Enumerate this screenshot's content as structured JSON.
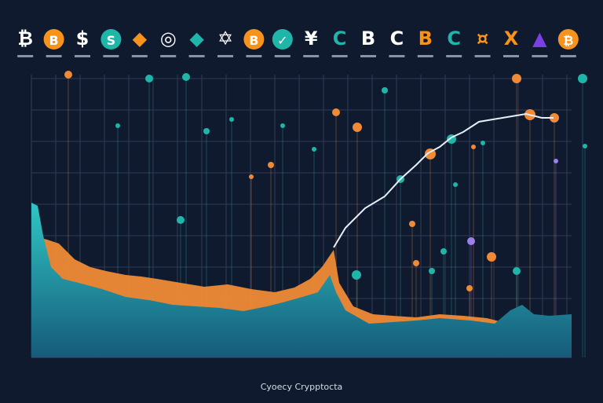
{
  "header": {
    "icons": [
      {
        "glyph": "₿",
        "color": "#ffffff",
        "ring": false
      },
      {
        "glyph": "B",
        "color": "#f7931a",
        "ring": true
      },
      {
        "glyph": "$",
        "color": "#ffffff",
        "ring": false
      },
      {
        "glyph": "S",
        "color": "#1fb5a8",
        "ring": true
      },
      {
        "glyph": "◆",
        "color": "#f7931a",
        "ring": false
      },
      {
        "glyph": "◎",
        "color": "#ffffff",
        "ring": false
      },
      {
        "glyph": "◆",
        "color": "#1fb5a8",
        "ring": false
      },
      {
        "glyph": "✡",
        "color": "#ffffff",
        "ring": false
      },
      {
        "glyph": "B",
        "color": "#f7931a",
        "ring": true
      },
      {
        "glyph": "✓",
        "color": "#1fb5a8",
        "ring": true
      },
      {
        "glyph": "¥",
        "color": "#ffffff",
        "ring": false
      },
      {
        "glyph": "C",
        "color": "#1fb5a8",
        "ring": false
      },
      {
        "glyph": "B",
        "color": "#ffffff",
        "ring": false
      },
      {
        "glyph": "C",
        "color": "#ffffff",
        "ring": false
      },
      {
        "glyph": "B",
        "color": "#f7931a",
        "ring": false
      },
      {
        "glyph": "C",
        "color": "#1fb5a8",
        "ring": false
      },
      {
        "glyph": "¤",
        "color": "#f7931a",
        "ring": false
      },
      {
        "glyph": "X",
        "color": "#f7931a",
        "ring": false
      },
      {
        "glyph": "▲",
        "color": "#7b3fe4",
        "ring": false
      },
      {
        "glyph": "₿",
        "color": "#f7931a",
        "ring": true
      }
    ]
  },
  "footer": {
    "caption": "Cyoecy Crypptocta"
  }
}
